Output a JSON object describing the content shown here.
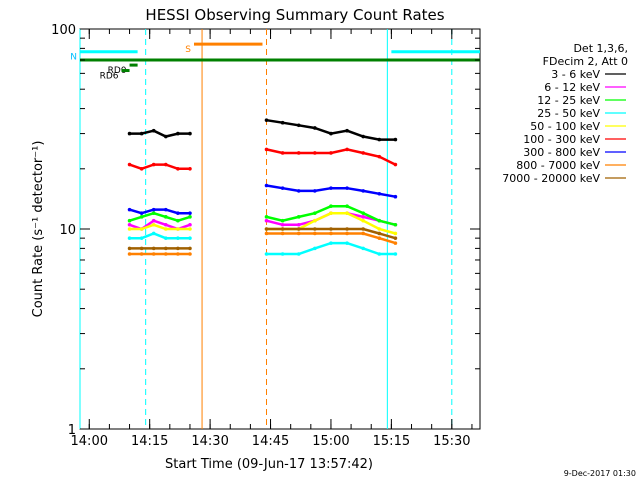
{
  "chart_data": {
    "type": "line",
    "title": "HESSI Observing Summary Count Rates",
    "xlabel": "Start Time (09-Jun-17 13:57:42)",
    "ylabel": "Count Rate (s⁻¹ detector⁻¹)",
    "yscale": "log",
    "ylim": [
      1,
      100
    ],
    "xlim": [
      "13:57:42",
      "15:37:00"
    ],
    "x_ticks": [
      "14:00",
      "14:15",
      "14:30",
      "14:45",
      "15:00",
      "15:15",
      "15:30"
    ],
    "y_ticks": [
      "1",
      "10",
      "100"
    ],
    "legend": {
      "placement": "right",
      "header_lines": [
        "Det 1,3,6,",
        "FDecim 2, Att 0"
      ]
    },
    "series": [
      {
        "name": "3 - 6 keV",
        "color": "#000000",
        "x": [
          "14:10",
          "14:13",
          "14:16",
          "14:19",
          "14:22",
          "14:25",
          "14:44",
          "14:48",
          "14:52",
          "14:56",
          "15:00",
          "15:04",
          "15:08",
          "15:12",
          "15:16"
        ],
        "values": [
          30,
          30,
          31,
          29,
          30,
          30,
          35,
          34,
          33,
          32,
          30,
          31,
          29,
          28,
          28
        ]
      },
      {
        "name": "6 - 12 keV",
        "color": "#ff00ff",
        "x": [
          "14:10",
          "14:13",
          "14:16",
          "14:19",
          "14:22",
          "14:25",
          "14:44",
          "14:48",
          "14:52",
          "14:56",
          "15:00",
          "15:04",
          "15:08",
          "15:12",
          "15:16"
        ],
        "values": [
          10.5,
          10,
          11,
          10.5,
          10,
          10.5,
          11,
          10.5,
          10.5,
          11,
          12,
          12,
          11.5,
          11,
          10.5
        ]
      },
      {
        "name": "12 - 25 keV",
        "color": "#00ff00",
        "x": [
          "14:10",
          "14:13",
          "14:16",
          "14:19",
          "14:22",
          "14:25",
          "14:44",
          "14:48",
          "14:52",
          "14:56",
          "15:00",
          "15:04",
          "15:08",
          "15:12",
          "15:16"
        ],
        "values": [
          11,
          11.5,
          12,
          11.5,
          11,
          11.5,
          11.5,
          11,
          11.5,
          12,
          13,
          13,
          12,
          11,
          10.5
        ]
      },
      {
        "name": "25 - 50 keV",
        "color": "#00ffff",
        "x": [
          "14:10",
          "14:13",
          "14:16",
          "14:19",
          "14:22",
          "14:25",
          "14:44",
          "14:48",
          "14:52",
          "14:56",
          "15:00",
          "15:04",
          "15:08",
          "15:12",
          "15:16"
        ],
        "values": [
          9,
          9,
          9.5,
          9,
          9,
          9,
          7.5,
          7.5,
          7.5,
          8,
          8.5,
          8.5,
          8,
          7.5,
          7.5
        ]
      },
      {
        "name": "50 - 100 keV",
        "color": "#ffff00",
        "x": [
          "14:10",
          "14:13",
          "14:16",
          "14:19",
          "14:22",
          "14:25",
          "14:44",
          "14:48",
          "14:52",
          "14:56",
          "15:00",
          "15:04",
          "15:08",
          "15:12",
          "15:16"
        ],
        "values": [
          10,
          10,
          10.5,
          10,
          10,
          10,
          10,
          10,
          10,
          11,
          12,
          12,
          11,
          10,
          9.5
        ]
      },
      {
        "name": "100 - 300 keV",
        "color": "#ff0000",
        "x": [
          "14:10",
          "14:13",
          "14:16",
          "14:19",
          "14:22",
          "14:25",
          "14:44",
          "14:48",
          "14:52",
          "14:56",
          "15:00",
          "15:04",
          "15:08",
          "15:12",
          "15:16"
        ],
        "values": [
          21,
          20,
          21,
          21,
          20,
          20,
          25,
          24,
          24,
          24,
          24,
          25,
          24,
          23,
          21
        ]
      },
      {
        "name": "300 - 800 keV",
        "color": "#0000ff",
        "x": [
          "14:10",
          "14:13",
          "14:16",
          "14:19",
          "14:22",
          "14:25",
          "14:44",
          "14:48",
          "14:52",
          "14:56",
          "15:00",
          "15:04",
          "15:08",
          "15:12",
          "15:16"
        ],
        "values": [
          12.5,
          12,
          12.5,
          12.5,
          12,
          12,
          16.5,
          16,
          15.5,
          15.5,
          16,
          16,
          15.5,
          15,
          14.5
        ]
      },
      {
        "name": "800 - 7000 keV",
        "color": "#ff8000",
        "x": [
          "14:10",
          "14:13",
          "14:16",
          "14:19",
          "14:22",
          "14:25",
          "14:44",
          "14:48",
          "14:52",
          "14:56",
          "15:00",
          "15:04",
          "15:08",
          "15:12",
          "15:16"
        ],
        "values": [
          7.5,
          7.5,
          7.5,
          7.5,
          7.5,
          7.5,
          9.5,
          9.5,
          9.5,
          9.5,
          9.5,
          9.5,
          9.5,
          9,
          8.5
        ]
      },
      {
        "name": "7000 - 20000 keV",
        "color": "#a06000",
        "x": [
          "14:10",
          "14:13",
          "14:16",
          "14:19",
          "14:22",
          "14:25",
          "14:44",
          "14:48",
          "14:52",
          "14:56",
          "15:00",
          "15:04",
          "15:08",
          "15:12",
          "15:16"
        ],
        "values": [
          8,
          8,
          8,
          8,
          8,
          8,
          10,
          10,
          10,
          10,
          10,
          10,
          10,
          9.5,
          9
        ]
      }
    ],
    "flag_bars": [
      {
        "label": "N",
        "color": "#00ffff",
        "y": 77,
        "ranges": [
          [
            "13:57:42",
            "14:12"
          ],
          [
            "15:15",
            "15:37"
          ]
        ]
      },
      {
        "label": "",
        "color": "#008000",
        "y": 70,
        "ranges": [
          [
            "13:57:42",
            "15:37"
          ]
        ]
      },
      {
        "label": "S",
        "color": "#ff8000",
        "y": 84,
        "ranges": [
          [
            "14:26",
            "14:43"
          ]
        ]
      },
      {
        "label": "RD0",
        "color": "#008000",
        "y": 66,
        "ranges": [
          [
            "14:10",
            "14:12"
          ]
        ]
      },
      {
        "label": "RD6",
        "color": "#008000",
        "y": 62,
        "ranges": [
          [
            "14:08",
            "14:10"
          ]
        ]
      }
    ],
    "vertical_lines": [
      {
        "x": "13:57:42",
        "color": "#00ffff",
        "style": "solid"
      },
      {
        "x": "14:14",
        "color": "#00ffff",
        "style": "dashed"
      },
      {
        "x": "14:28",
        "color": "#ff8000",
        "style": "solid"
      },
      {
        "x": "14:44",
        "color": "#ff8000",
        "style": "dashed"
      },
      {
        "x": "15:14",
        "color": "#00ffff",
        "style": "solid"
      },
      {
        "x": "15:30",
        "color": "#00ffff",
        "style": "dashed"
      }
    ]
  },
  "footer": {
    "timestamp": "9-Dec-2017 01:30"
  }
}
